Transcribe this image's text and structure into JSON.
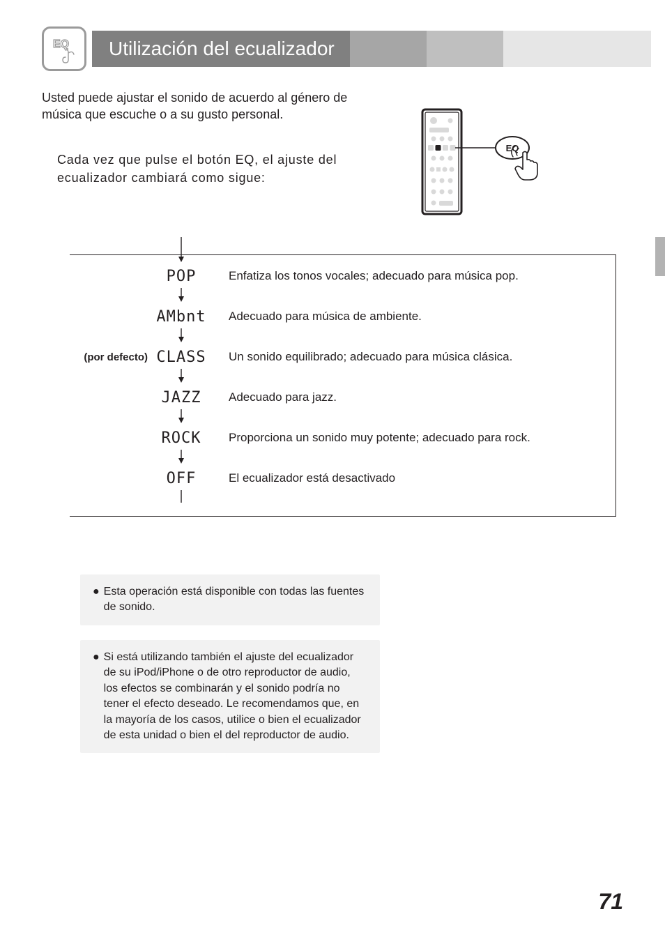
{
  "header": {
    "title": "Utilización del ecualizador",
    "icon_label": "EQ"
  },
  "intro": "Usted puede ajustar el sonido de acuerdo al género de música que escuche o a su gusto personal.",
  "step": "Cada vez que pulse el botón EQ, el ajuste del ecualizador cambiará como sigue:",
  "remote": {
    "button_label": "EQ"
  },
  "default_label": "(por defecto)",
  "eq_modes": [
    {
      "label": "POP",
      "display": "POP",
      "desc": "Enfatiza los tonos vocales; adecuado para música pop.",
      "is_default": false
    },
    {
      "label": "AMbnt",
      "display": "AMbnt",
      "desc": "Adecuado para música de ambiente.",
      "is_default": false
    },
    {
      "label": "CLASS",
      "display": "CLASS",
      "desc": "Un sonido equilibrado; adecuado para música clásica.",
      "is_default": true
    },
    {
      "label": "JAZZ",
      "display": "JAZZ",
      "desc": "Adecuado para jazz.",
      "is_default": false
    },
    {
      "label": "ROCK",
      "display": "ROCK",
      "desc": "Proporciona un sonido muy potente; adecuado para rock.",
      "is_default": false
    },
    {
      "label": "OFF",
      "display": "OFF",
      "desc": "El ecualizador está desactivado",
      "is_default": false
    }
  ],
  "notes": [
    "Esta operación está disponible con todas las fuentes de sonido.",
    "Si está utilizando también el ajuste del ecualizador de su iPod/iPhone o de otro reproductor de audio, los efectos se combinarán y el sonido podría no tener el efecto deseado. Le recomendamos que, en la mayoría de los casos, utilice o bien el ecualizador de esta unidad o bien el del reproductor de audio."
  ],
  "page_number": "71",
  "colors": {
    "title_bg": "#808080",
    "seg1": "#a6a6a6",
    "seg2": "#bfbfbf",
    "seg3": "#e6e6e6",
    "note_bg": "#f2f2f2",
    "text": "#231f20",
    "icon_stroke": "#9a9a9a"
  },
  "typography": {
    "title_fontsize": 28,
    "body_fontsize": 18,
    "eq_label_fontsize": 22,
    "note_fontsize": 16,
    "pagenum_fontsize": 32
  }
}
